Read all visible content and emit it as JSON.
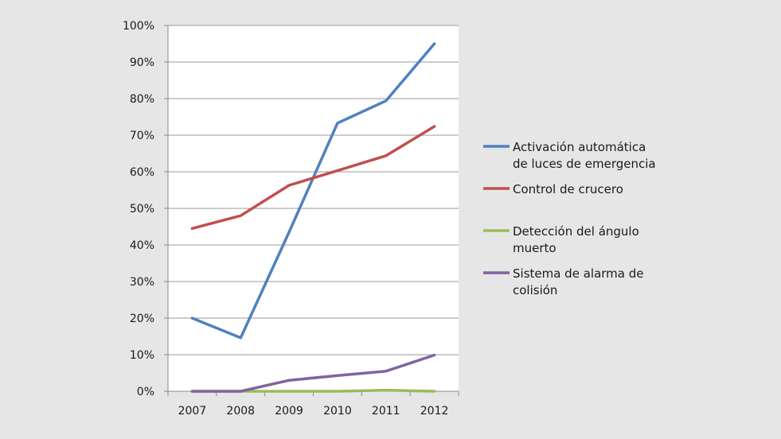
{
  "chart_data": {
    "type": "line",
    "title": "",
    "xlabel": "",
    "ylabel": "",
    "categories": [
      "2007",
      "2008",
      "2009",
      "2010",
      "2011",
      "2012"
    ],
    "ylim": [
      0,
      100
    ],
    "y_tick_values": [
      0,
      10,
      20,
      30,
      40,
      50,
      60,
      70,
      80,
      90,
      100
    ],
    "y_tick_labels": [
      "0%",
      "10%",
      "20%",
      "30%",
      "40%",
      "50%",
      "60%",
      "70%",
      "80%",
      "90%",
      "100%"
    ],
    "grid": "horizontal",
    "legend_position": "right",
    "series": [
      {
        "name": "Activación automática de luces de emergencia",
        "legend_lines": [
          "Activación automática",
          "de luces de emergencia"
        ],
        "color": "#4f81bd",
        "values": [
          20,
          14.6,
          43.5,
          73.3,
          79.4,
          95
        ]
      },
      {
        "name": "Control de crucero",
        "legend_lines": [
          "Control de crucero"
        ],
        "color": "#c0504d",
        "values": [
          44.5,
          48,
          56.3,
          60.3,
          64.4,
          72.4
        ]
      },
      {
        "name": "Detección del ángulo muerto",
        "legend_lines": [
          "Detección del ángulo",
          "muerto"
        ],
        "color": "#9bbb59",
        "values": [
          0,
          0,
          0,
          0,
          0.3,
          0
        ]
      },
      {
        "name": "Sistema de alarma de colisión",
        "legend_lines": [
          "Sistema de alarma de",
          "colisión"
        ],
        "color": "#8064a2",
        "values": [
          0,
          0,
          3,
          4.3,
          5.5,
          9.9
        ]
      }
    ]
  }
}
